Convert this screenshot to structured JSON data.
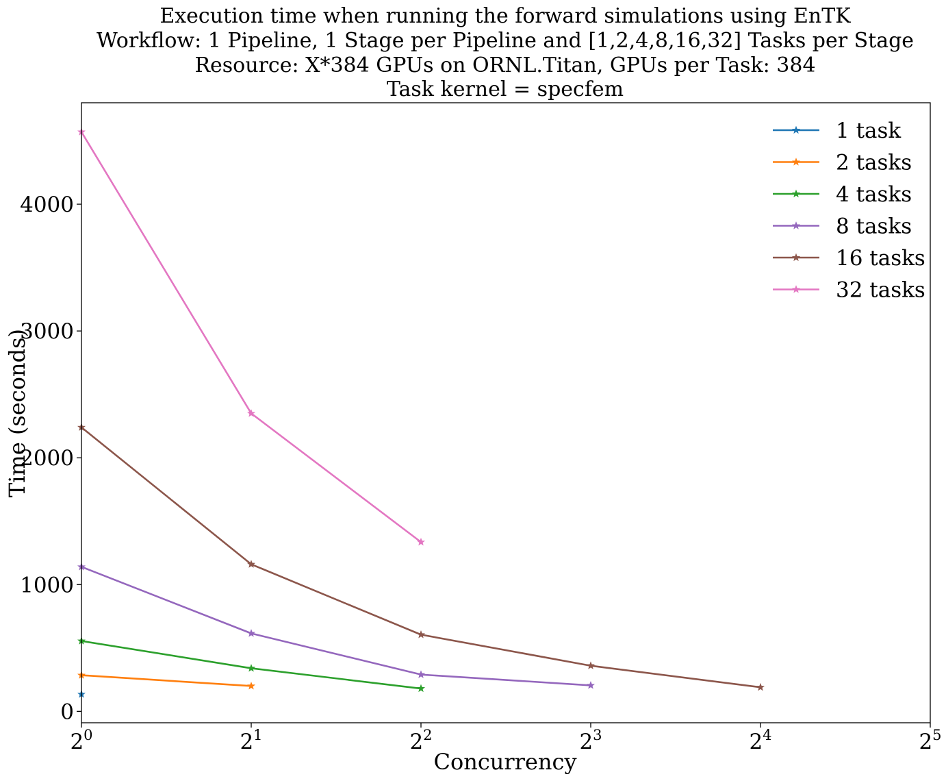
{
  "chart_data": {
    "type": "line",
    "title_lines": [
      "Execution time when running the forward simulations using EnTK",
      "Workflow: 1 Pipeline, 1 Stage per Pipeline and [1,2,4,8,16,32] Tasks per Stage",
      "Resource: X*384 GPUs on ORNL.Titan, GPUs per Task: 384",
      "Task kernel = specfem"
    ],
    "xlabel": "Concurrency",
    "ylabel": "Time (seconds)",
    "x_scale": "log2",
    "xlim": [
      1,
      32
    ],
    "ylim": [
      -90,
      4800
    ],
    "x_ticks": [
      {
        "value": 1,
        "base": "2",
        "exp": "0"
      },
      {
        "value": 2,
        "base": "2",
        "exp": "1"
      },
      {
        "value": 4,
        "base": "2",
        "exp": "2"
      },
      {
        "value": 8,
        "base": "2",
        "exp": "3"
      },
      {
        "value": 16,
        "base": "2",
        "exp": "4"
      },
      {
        "value": 32,
        "base": "2",
        "exp": "5"
      }
    ],
    "y_ticks": [
      0,
      1000,
      2000,
      3000,
      4000
    ],
    "grid": false,
    "legend_position": "top-right",
    "marker": "star",
    "series": [
      {
        "name": "1 task",
        "color": "#1f77b4",
        "x": [
          1
        ],
        "y": [
          135
        ]
      },
      {
        "name": "2 tasks",
        "color": "#ff7f0e",
        "x": [
          1,
          2
        ],
        "y": [
          285,
          200
        ]
      },
      {
        "name": "4 tasks",
        "color": "#2ca02c",
        "x": [
          1,
          2,
          4
        ],
        "y": [
          555,
          340,
          180
        ]
      },
      {
        "name": "8 tasks",
        "color": "#9467bd",
        "x": [
          1,
          2,
          4,
          8
        ],
        "y": [
          1140,
          615,
          290,
          205
        ]
      },
      {
        "name": "16 tasks",
        "color": "#8c564b",
        "x": [
          1,
          2,
          4,
          8,
          16
        ],
        "y": [
          2240,
          1160,
          605,
          360,
          190
        ]
      },
      {
        "name": "32 tasks",
        "color": "#e377c2",
        "x": [
          1,
          2,
          4
        ],
        "y": [
          4570,
          2350,
          1335
        ]
      }
    ]
  }
}
